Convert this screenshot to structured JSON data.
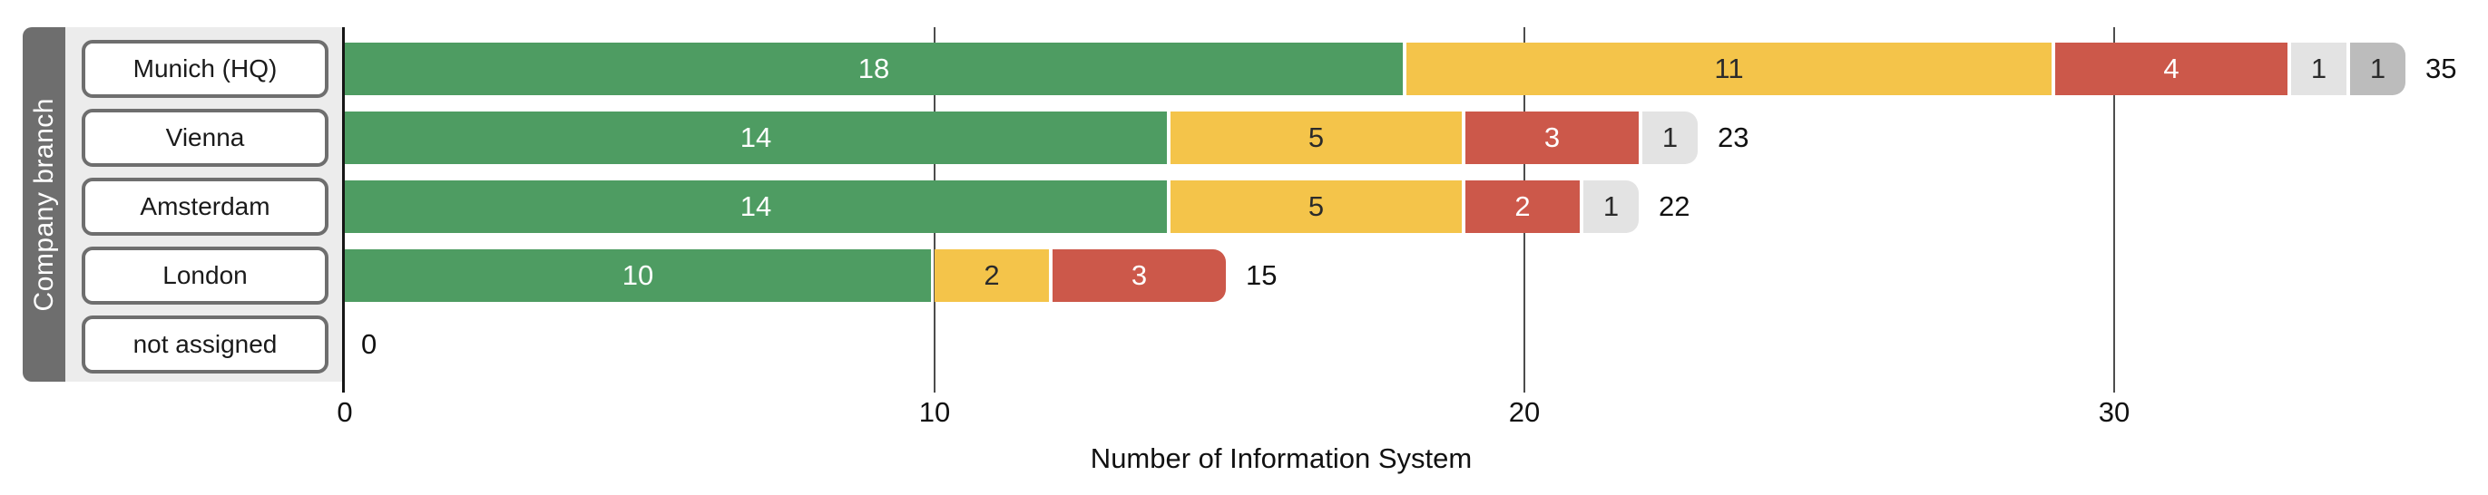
{
  "chart_data": {
    "type": "bar",
    "orientation": "horizontal",
    "stacked": true,
    "xlabel": "Number of Information System",
    "ylabel": "Company branch",
    "x_ticks": [
      0,
      10,
      20,
      30
    ],
    "xlim": [
      0,
      36.3
    ],
    "grid": true,
    "legend": "none",
    "categories": [
      "Munich (HQ)",
      "Vienna",
      "Amsterdam",
      "London",
      "not assigned"
    ],
    "series": [
      {
        "name": "green",
        "color": "#4e9c62",
        "label_color": "#ffffff",
        "values": [
          18,
          14,
          14,
          10,
          0
        ]
      },
      {
        "name": "yellow",
        "color": "#f4c44a",
        "label_color": "#2b2b2b",
        "values": [
          11,
          5,
          5,
          2,
          0
        ]
      },
      {
        "name": "red",
        "color": "#cc584a",
        "label_color": "#ffffff",
        "values": [
          4,
          3,
          2,
          3,
          0
        ]
      },
      {
        "name": "light-gray",
        "color": "#e3e3e3",
        "label_color": "#2b2b2b",
        "values": [
          1,
          1,
          1,
          0,
          0
        ]
      },
      {
        "name": "dark-gray",
        "color": "#bcbcbc",
        "label_color": "#2b2b2b",
        "values": [
          1,
          0,
          0,
          0,
          0
        ]
      }
    ],
    "totals": [
      35,
      23,
      22,
      15,
      0
    ]
  },
  "palette": {
    "strip_bg": "#6e6e6e",
    "panel_bg": "#ececec",
    "box_border": "#6e6e6e",
    "gridline": "#4d4d4d",
    "axis_line": "#151515",
    "text": "#1a1a1a"
  }
}
